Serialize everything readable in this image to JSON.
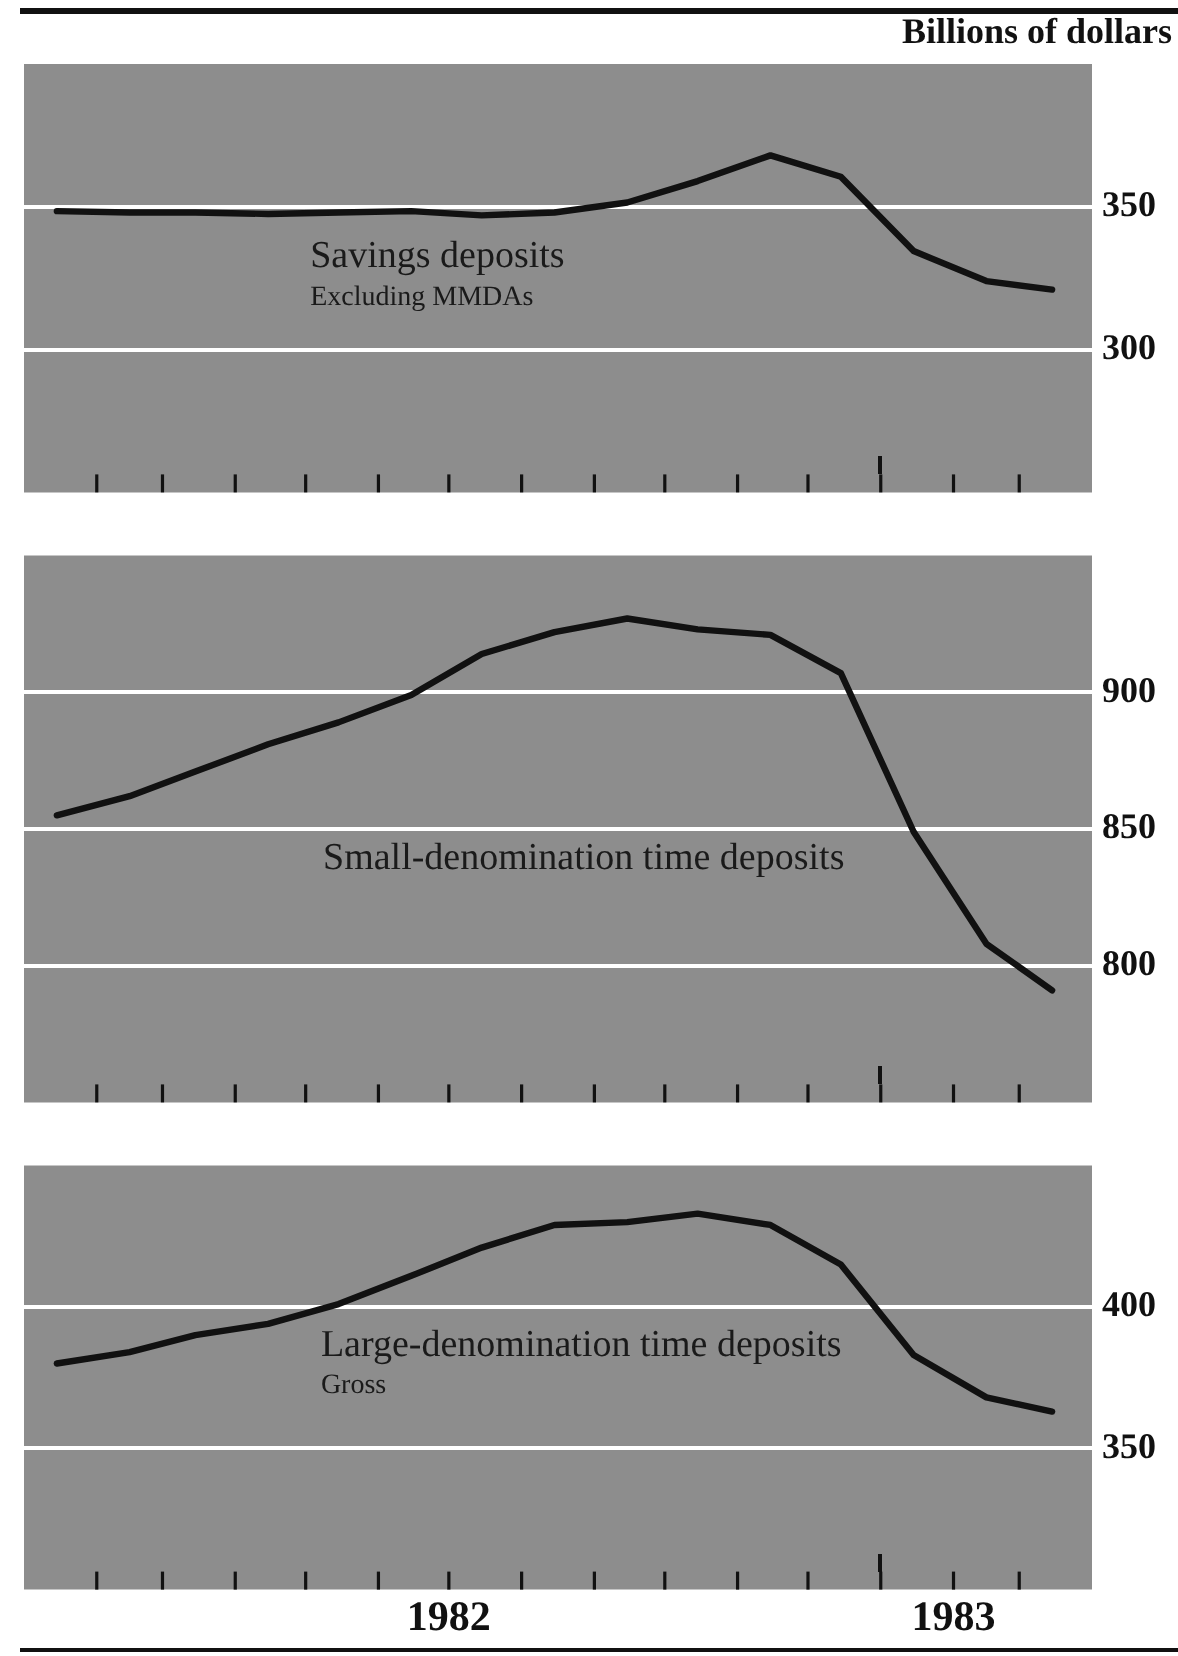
{
  "chart_data": [
    {
      "type": "line",
      "title": "Savings deposits",
      "subtitle": "Excluding MMDAs",
      "ylabel": "Billions of dollars",
      "x": [
        "1982-01-15",
        "1982-02-15",
        "1982-03-15",
        "1982-04-15",
        "1982-05-15",
        "1982-06-15",
        "1982-07-15",
        "1982-08-15",
        "1982-09-15",
        "1982-10-15",
        "1982-11-15",
        "1982-12-15",
        "1983-01-15",
        "1983-02-15",
        "1983-03-15"
      ],
      "series": [
        {
          "color": "#111111",
          "values": [
            348.5,
            348,
            348,
            347.5,
            348,
            348.5,
            347,
            348,
            351.5,
            359,
            368,
            360.5,
            334.5,
            324,
            321
          ]
        }
      ],
      "xlim": [
        "1982-01-01",
        "1983-04-01"
      ],
      "xticks": [
        {
          "value": "1982-02-01",
          "label": null
        },
        {
          "value": "1982-03-01",
          "label": null
        },
        {
          "value": "1982-04-01",
          "label": null
        },
        {
          "value": "1982-05-01",
          "label": null
        },
        {
          "value": "1982-06-01",
          "label": null
        },
        {
          "value": "1982-07-01",
          "label": null
        },
        {
          "value": "1982-08-01",
          "label": null
        },
        {
          "value": "1982-09-01",
          "label": null
        },
        {
          "value": "1982-10-01",
          "label": null
        },
        {
          "value": "1982-11-01",
          "label": null
        },
        {
          "value": "1982-12-01",
          "label": null
        },
        {
          "value": "1983-01-01",
          "label": null
        },
        {
          "value": "1983-02-01",
          "label": null
        },
        {
          "value": "1983-03-01",
          "label": null
        }
      ],
      "ylim": [
        250,
        400
      ],
      "yticks": [
        300,
        350
      ],
      "grid": "y",
      "tick_labels": "y",
      "marker": "none",
      "line_style": "solid"
    },
    {
      "type": "line",
      "title": "Small-denomination time deposits",
      "x": [
        "1982-01-15",
        "1982-02-15",
        "1982-03-15",
        "1982-04-15",
        "1982-05-15",
        "1982-06-15",
        "1982-07-15",
        "1982-08-15",
        "1982-09-15",
        "1982-10-15",
        "1982-11-15",
        "1982-12-15",
        "1983-01-15",
        "1983-02-15",
        "1983-03-15"
      ],
      "series": [
        {
          "color": "#111111",
          "values": [
            855,
            862,
            871,
            881,
            889,
            899,
            914,
            922,
            927,
            923,
            921,
            907,
            849,
            808,
            791
          ]
        }
      ],
      "xlim": [
        "1982-01-01",
        "1983-04-01"
      ],
      "xticks": [
        {
          "value": "1982-02-01",
          "label": null
        },
        {
          "value": "1982-03-01",
          "label": null
        },
        {
          "value": "1982-04-01",
          "label": null
        },
        {
          "value": "1982-05-01",
          "label": null
        },
        {
          "value": "1982-06-01",
          "label": null
        },
        {
          "value": "1982-07-01",
          "label": null
        },
        {
          "value": "1982-08-01",
          "label": null
        },
        {
          "value": "1982-09-01",
          "label": null
        },
        {
          "value": "1982-10-01",
          "label": null
        },
        {
          "value": "1982-11-01",
          "label": null
        },
        {
          "value": "1982-12-01",
          "label": null
        },
        {
          "value": "1983-01-01",
          "label": null
        },
        {
          "value": "1983-02-01",
          "label": null
        },
        {
          "value": "1983-03-01",
          "label": null
        }
      ],
      "ylim": [
        750,
        950
      ],
      "yticks": [
        800,
        850,
        900
      ],
      "grid": "y",
      "tick_labels": "y",
      "marker": "none",
      "line_style": "solid"
    },
    {
      "type": "line",
      "title": "Large-denomination time deposits",
      "subtitle": "Gross",
      "x": [
        "1982-01-15",
        "1982-02-15",
        "1982-03-15",
        "1982-04-15",
        "1982-05-15",
        "1982-06-15",
        "1982-07-15",
        "1982-08-15",
        "1982-09-15",
        "1982-10-15",
        "1982-11-15",
        "1982-12-15",
        "1983-01-15",
        "1983-02-15",
        "1983-03-15"
      ],
      "series": [
        {
          "color": "#111111",
          "values": [
            380,
            384,
            390,
            394,
            401,
            411,
            421,
            429,
            430,
            433,
            429,
            415,
            383,
            368,
            363
          ]
        }
      ],
      "xlim": [
        "1982-01-01",
        "1983-04-01"
      ],
      "xticks": [
        {
          "value": "1982-02-01",
          "label": null
        },
        {
          "value": "1982-03-01",
          "label": null
        },
        {
          "value": "1982-04-01",
          "label": null
        },
        {
          "value": "1982-05-01",
          "label": null
        },
        {
          "value": "1982-06-01",
          "label": null
        },
        {
          "value": "1982-07-01",
          "label": "1982"
        },
        {
          "value": "1982-08-01",
          "label": null
        },
        {
          "value": "1982-09-01",
          "label": null
        },
        {
          "value": "1982-10-01",
          "label": null
        },
        {
          "value": "1982-11-01",
          "label": null
        },
        {
          "value": "1982-12-01",
          "label": null
        },
        {
          "value": "1983-01-01",
          "label": null
        },
        {
          "value": "1983-02-01",
          "label": "1983"
        },
        {
          "value": "1983-03-01",
          "label": null
        }
      ],
      "ylim": [
        300,
        450
      ],
      "yticks": [
        350,
        400
      ],
      "grid": "y",
      "marker": "none",
      "line_style": "solid"
    }
  ]
}
